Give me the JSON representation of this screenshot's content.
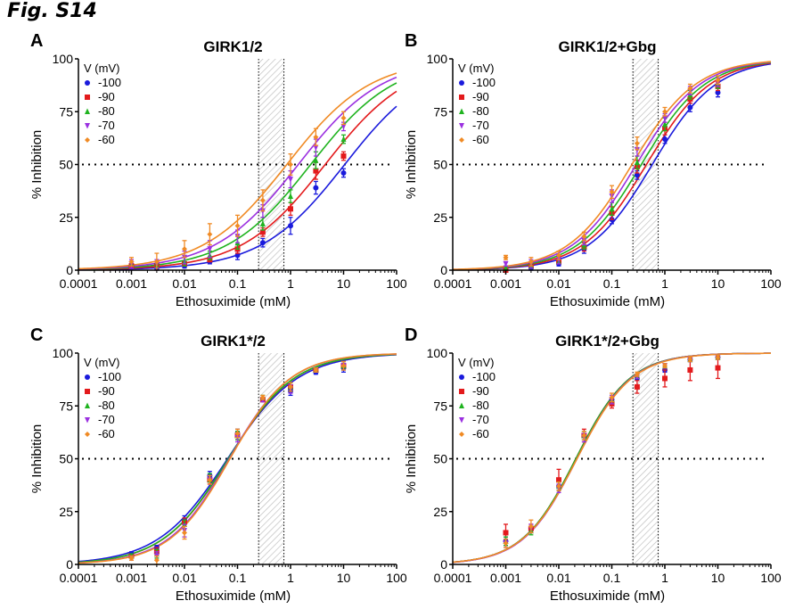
{
  "figure_label": "Fig. S14",
  "colors": {
    "-100": "#1a1adc",
    "-90": "#e31a1c",
    "-80": "#1fb31f",
    "-70": "#9b30e0",
    "-60": "#f08a24"
  },
  "chart_data": [
    {
      "type": "line",
      "panel": "A",
      "title": "GIRK1/2",
      "xlabel": "Ethosuximide (mM)",
      "ylabel": "% Inhibition",
      "xscale": "log",
      "xlim": [
        0.0001,
        100
      ],
      "ylim": [
        0,
        100
      ],
      "xticks": [
        "0.0001",
        "0.001",
        "0.01",
        "0.1",
        "1",
        "10",
        "100"
      ],
      "yticks": [
        "0",
        "25",
        "50",
        "75",
        "100"
      ],
      "reference_line_y": 50,
      "shaded_region_x": [
        0.25,
        0.75
      ],
      "legend_title": "V (mV)",
      "legend_position": "top-left",
      "x": [
        0.001,
        0.003,
        0.01,
        0.03,
        0.1,
        0.3,
        1,
        3,
        10
      ],
      "series": [
        {
          "name": "-100",
          "marker": "circle",
          "ic50": 10.5,
          "hill": 0.55,
          "values": [
            2,
            1,
            2,
            4,
            7,
            13,
            21,
            39,
            46
          ],
          "errors": [
            1,
            1,
            1,
            1,
            2,
            2,
            4,
            3,
            2
          ]
        },
        {
          "name": "-90",
          "marker": "square",
          "ic50": 4.5,
          "hill": 0.55,
          "values": [
            2,
            2,
            3,
            5,
            10,
            18,
            29,
            47,
            54
          ],
          "errors": [
            1,
            1,
            1,
            1,
            2,
            2,
            3,
            4,
            2
          ]
        },
        {
          "name": "-80",
          "marker": "triangle-up",
          "ic50": 2.4,
          "hill": 0.55,
          "values": [
            3,
            2,
            4,
            7,
            13,
            22,
            35,
            52,
            62
          ],
          "errors": [
            1,
            1,
            2,
            2,
            3,
            3,
            3,
            4,
            2
          ]
        },
        {
          "name": "-70",
          "marker": "triangle-down",
          "ic50": 1.4,
          "hill": 0.55,
          "values": [
            3,
            3,
            6,
            10,
            16,
            28,
            43,
            58,
            68
          ],
          "errors": [
            2,
            2,
            3,
            4,
            3,
            3,
            4,
            4,
            2
          ]
        },
        {
          "name": "-60",
          "marker": "diamond",
          "ic50": 0.85,
          "hill": 0.55,
          "values": [
            4,
            4,
            10,
            17,
            21,
            33,
            50,
            63,
            72
          ],
          "errors": [
            2,
            4,
            4,
            5,
            5,
            5,
            5,
            4,
            3
          ]
        }
      ]
    },
    {
      "type": "line",
      "panel": "B",
      "title": "GIRK1/2+Gbg",
      "xlabel": "Ethosuximide (mM)",
      "ylabel": "% Inhibition",
      "xscale": "log",
      "xlim": [
        0.0001,
        100
      ],
      "ylim": [
        0,
        100
      ],
      "xticks": [
        "0.0001",
        "0.001",
        "0.01",
        "0.1",
        "1",
        "10",
        "100"
      ],
      "yticks": [
        "0",
        "25",
        "50",
        "75",
        "100"
      ],
      "reference_line_y": 50,
      "shaded_region_x": [
        0.25,
        0.75
      ],
      "legend_title": "V (mV)",
      "legend_position": "top-left",
      "x": [
        0.001,
        0.003,
        0.01,
        0.03,
        0.1,
        0.3,
        1,
        3,
        10
      ],
      "series": [
        {
          "name": "-100",
          "marker": "circle",
          "ic50": 0.58,
          "hill": 0.72,
          "values": [
            0,
            1,
            3,
            10,
            24,
            45,
            62,
            77,
            84
          ],
          "errors": [
            0,
            1,
            1,
            2,
            2,
            2,
            2,
            2,
            2
          ]
        },
        {
          "name": "-90",
          "marker": "square",
          "ic50": 0.45,
          "hill": 0.72,
          "values": [
            0,
            2,
            4,
            11,
            27,
            49,
            67,
            81,
            87
          ],
          "errors": [
            0,
            1,
            1,
            2,
            3,
            3,
            3,
            2,
            2
          ]
        },
        {
          "name": "-80",
          "marker": "triangle-up",
          "ic50": 0.36,
          "hill": 0.72,
          "values": [
            1,
            2,
            4,
            12,
            29,
            51,
            69,
            83,
            88
          ],
          "errors": [
            1,
            1,
            1,
            2,
            3,
            3,
            3,
            2,
            2
          ]
        },
        {
          "name": "-70",
          "marker": "triangle-down",
          "ic50": 0.29,
          "hill": 0.72,
          "values": [
            3,
            3,
            5,
            14,
            35,
            57,
            72,
            85,
            89
          ],
          "errors": [
            1,
            2,
            2,
            2,
            3,
            3,
            2,
            2,
            2
          ]
        },
        {
          "name": "-60",
          "marker": "diamond",
          "ic50": 0.24,
          "hill": 0.72,
          "values": [
            6,
            4,
            7,
            16,
            37,
            60,
            75,
            86,
            90
          ],
          "errors": [
            1,
            2,
            2,
            2,
            3,
            3,
            2,
            2,
            2
          ]
        }
      ]
    },
    {
      "type": "line",
      "panel": "C",
      "title": "GIRK1*/2",
      "xlabel": "Ethosuximide (mM)",
      "ylabel": "% Inhibition",
      "xscale": "log",
      "xlim": [
        0.0001,
        100
      ],
      "ylim": [
        0,
        100
      ],
      "xticks": [
        "0.0001",
        "0.001",
        "0.01",
        "0.1",
        "1",
        "10",
        "100"
      ],
      "yticks": [
        "0",
        "25",
        "50",
        "75",
        "100"
      ],
      "reference_line_y": 50,
      "shaded_region_x": [
        0.25,
        0.75
      ],
      "legend_title": "V (mV)",
      "legend_position": "top-left",
      "x": [
        0.001,
        0.003,
        0.01,
        0.03,
        0.1,
        0.3,
        1,
        3,
        10
      ],
      "series": [
        {
          "name": "-100",
          "marker": "circle",
          "ic50": 0.065,
          "hill": 0.66,
          "values": [
            5,
            8,
            21,
            42,
            62,
            78,
            82,
            91,
            93
          ],
          "errors": [
            1,
            1,
            2,
            2,
            2,
            1,
            2,
            1,
            2
          ]
        },
        {
          "name": "-90",
          "marker": "square",
          "ic50": 0.068,
          "hill": 0.7,
          "values": [
            4,
            6,
            20,
            40,
            61,
            78,
            84,
            92,
            94
          ],
          "errors": [
            1,
            2,
            2,
            2,
            2,
            1,
            2,
            1,
            2
          ]
        },
        {
          "name": "-80",
          "marker": "triangle-up",
          "ic50": 0.067,
          "hill": 0.7,
          "values": [
            4,
            5,
            19,
            41,
            61,
            79,
            84,
            92,
            94
          ],
          "errors": [
            1,
            2,
            2,
            2,
            2,
            1,
            2,
            1,
            2
          ]
        },
        {
          "name": "-70",
          "marker": "triangle-down",
          "ic50": 0.07,
          "hill": 0.75,
          "values": [
            3,
            4,
            16,
            40,
            60,
            78,
            83,
            92,
            94
          ],
          "errors": [
            1,
            2,
            3,
            2,
            2,
            1,
            2,
            1,
            2
          ]
        },
        {
          "name": "-60",
          "marker": "diamond",
          "ic50": 0.072,
          "hill": 0.76,
          "values": [
            3,
            2,
            15,
            40,
            62,
            79,
            84,
            92,
            94
          ],
          "errors": [
            1,
            2,
            3,
            2,
            2,
            1,
            2,
            1,
            2
          ]
        }
      ]
    },
    {
      "type": "line",
      "panel": "D",
      "title": "GIRK1*/2+Gbg",
      "xlabel": "Ethosuximide (mM)",
      "ylabel": "% Inhibition",
      "xscale": "log",
      "xlim": [
        0.0001,
        100
      ],
      "ylim": [
        0,
        100
      ],
      "xticks": [
        "0.0001",
        "0.001",
        "0.01",
        "0.1",
        "1",
        "10",
        "100"
      ],
      "yticks": [
        "0",
        "25",
        "50",
        "75",
        "100"
      ],
      "reference_line_y": 50,
      "shaded_region_x": [
        0.25,
        0.75
      ],
      "legend_title": "V (mV)",
      "legend_position": "top-left",
      "x": [
        0.001,
        0.003,
        0.01,
        0.03,
        0.1,
        0.3,
        1,
        3,
        10
      ],
      "series": [
        {
          "name": "-100",
          "marker": "circle",
          "ic50": 0.021,
          "hill": 0.85,
          "values": [
            11,
            17,
            37,
            61,
            78,
            88,
            92,
            97,
            98
          ],
          "errors": [
            2,
            1,
            2,
            2,
            1,
            1,
            1,
            1,
            1
          ]
        },
        {
          "name": "-90",
          "marker": "square",
          "ic50": 0.021,
          "hill": 0.85,
          "values": [
            15,
            17,
            40,
            61,
            76,
            84,
            88,
            92,
            93
          ],
          "errors": [
            4,
            2,
            5,
            3,
            2,
            3,
            4,
            5,
            5
          ]
        },
        {
          "name": "-80",
          "marker": "triangle-up",
          "ic50": 0.021,
          "hill": 0.85,
          "values": [
            11,
            16,
            37,
            61,
            78,
            89,
            94,
            97,
            98
          ],
          "errors": [
            2,
            2,
            2,
            2,
            2,
            1,
            1,
            1,
            1
          ]
        },
        {
          "name": "-70",
          "marker": "triangle-down",
          "ic50": 0.022,
          "hill": 0.85,
          "values": [
            10,
            17,
            36,
            60,
            78,
            89,
            94,
            97,
            98
          ],
          "errors": [
            2,
            2,
            2,
            2,
            2,
            1,
            1,
            1,
            1
          ]
        },
        {
          "name": "-60",
          "marker": "diamond",
          "ic50": 0.022,
          "hill": 0.84,
          "values": [
            10,
            18,
            37,
            61,
            79,
            90,
            94,
            97,
            98
          ],
          "errors": [
            2,
            3,
            2,
            2,
            2,
            1,
            1,
            1,
            1
          ]
        }
      ]
    }
  ]
}
